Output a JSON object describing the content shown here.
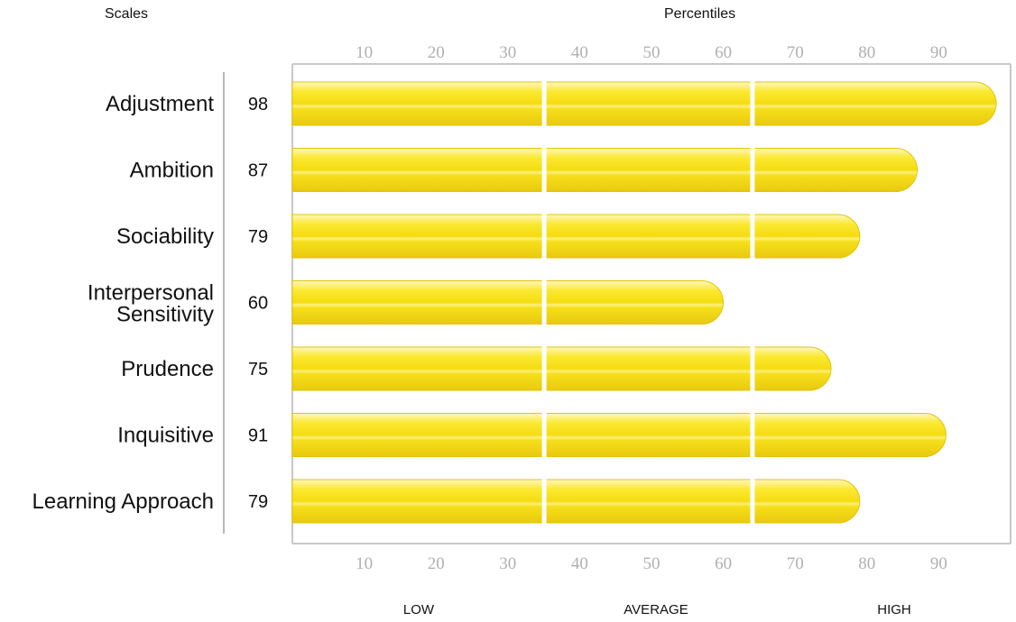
{
  "headers": {
    "scales": "Scales",
    "percentiles": "Percentiles"
  },
  "bands": [
    "LOW",
    "AVERAGE",
    "HIGH"
  ],
  "colors": {
    "bar_light": "#fff3a0",
    "bar_main": "#f7e21a",
    "bar_dark": "#e8c80e",
    "axis": "#c8c8c8",
    "tick_text": "#b0b0b0"
  },
  "chart_data": {
    "type": "bar",
    "orientation": "horizontal",
    "categories": [
      "Adjustment",
      "Ambition",
      "Sociability",
      "Interpersonal Sensitivity",
      "Prudence",
      "Inquisitive",
      "Learning Approach"
    ],
    "values": [
      98,
      87,
      79,
      60,
      75,
      91,
      79
    ],
    "ticks": [
      10,
      20,
      30,
      40,
      50,
      60,
      70,
      80,
      90
    ],
    "xlim": [
      0,
      100
    ],
    "band_breaks": [
      35,
      64
    ]
  }
}
